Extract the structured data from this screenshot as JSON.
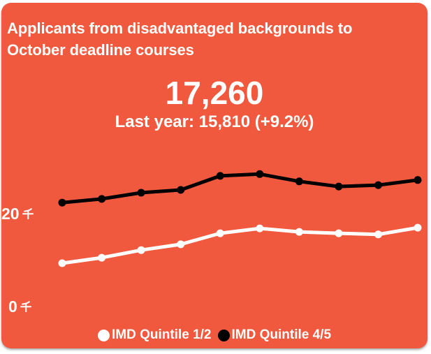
{
  "card": {
    "title": "Applicants from disadvantaged backgrounds to October deadline courses",
    "headline_value": "17,260",
    "comparison": "Last year: 15,810 (+9.2%)",
    "background_color": "#F0593D",
    "text_color": "#FFFFFF"
  },
  "chart_data": {
    "type": "line",
    "title": "Applicants from disadvantaged backgrounds to October deadline courses",
    "headline_current": 17260,
    "headline_last_year": 15810,
    "headline_change_pct": "+9.2%",
    "x_tick_labels_visible": false,
    "n_points": 10,
    "series": [
      {
        "name": "IMD Quintile 1/2",
        "color": "#FFFFFF",
        "values": [
          9550,
          10750,
          12400,
          13650,
          16050,
          17100,
          16350,
          16050,
          15810,
          17260
        ]
      },
      {
        "name": "IMD Quintile 4/5",
        "color": "#000000",
        "values": [
          22700,
          23500,
          24850,
          25450,
          28500,
          28900,
          27300,
          26200,
          26500,
          27600
        ]
      }
    ],
    "yticks": [
      {
        "value": 0,
        "label": "0 千",
        "display_number": "0"
      },
      {
        "value": 20000,
        "label": "20 千",
        "display_number": "20"
      }
    ],
    "y_unit_character": "千",
    "ylim": [
      0,
      32000
    ],
    "grid": false,
    "legend_position": "bottom"
  }
}
